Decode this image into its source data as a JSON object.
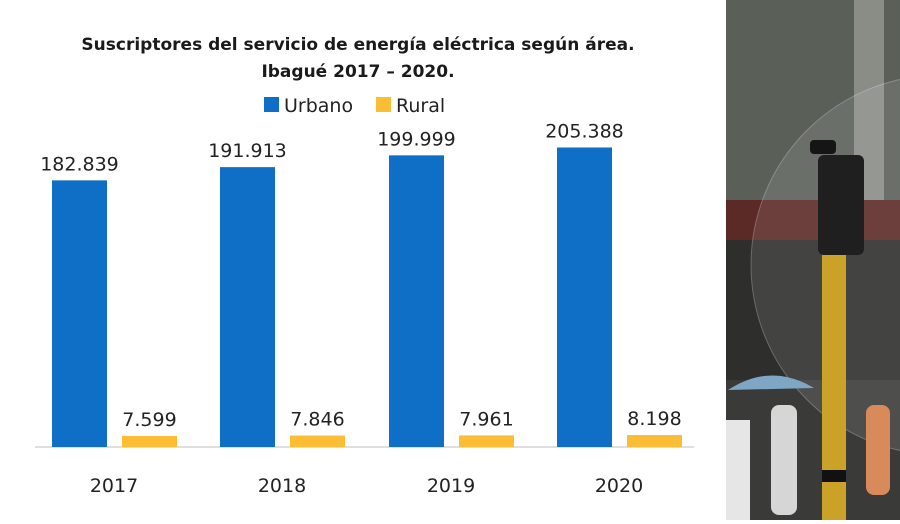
{
  "chart_data": {
    "type": "bar",
    "title_lines": [
      "Suscriptores del servicio de energía eléctrica según área.",
      "Ibagué 2017 – 2020."
    ],
    "categories": [
      "2017",
      "2018",
      "2019",
      "2020"
    ],
    "series": [
      {
        "name": "Urbano",
        "color": "#0f6fc6",
        "values": [
          182839,
          191913,
          199999,
          205388
        ],
        "labels": [
          "182.839",
          "191.913",
          "199.999",
          "205.388"
        ]
      },
      {
        "name": "Rural",
        "color": "#fbbd33",
        "values": [
          7599,
          7846,
          7961,
          8198
        ],
        "labels": [
          "7.599",
          "7.846",
          "7.961",
          "8.198"
        ]
      }
    ],
    "legend_position": "top-center",
    "grid": false,
    "ylim": [
      0,
      240000
    ]
  },
  "decor": {
    "photo_icon": "street-photo-with-traffic-light"
  }
}
